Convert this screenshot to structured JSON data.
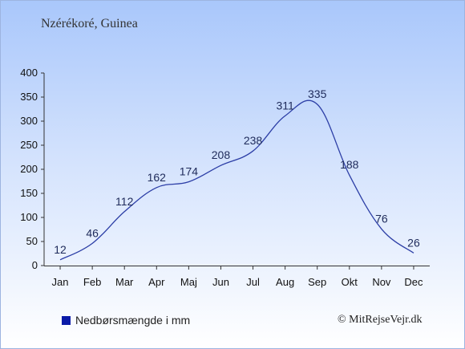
{
  "header": {
    "title": "Nzérékoré, Guinea"
  },
  "legend": {
    "label": "Nedbørsmængde i mm",
    "color": "#0a1aa8"
  },
  "credit": "© MitRejseVejr.dk",
  "colors": {
    "line": "#2c3ea6",
    "axis": "#333333",
    "label": "#1e2a5a"
  },
  "chart_data": {
    "type": "line",
    "title": "Nzérékoré, Guinea",
    "categories": [
      "Jan",
      "Feb",
      "Mar",
      "Apr",
      "Maj",
      "Jun",
      "Jul",
      "Aug",
      "Sep",
      "Okt",
      "Nov",
      "Dec"
    ],
    "series": [
      {
        "name": "Nedbørsmængde i mm",
        "values": [
          12,
          46,
          112,
          162,
          174,
          208,
          238,
          311,
          335,
          188,
          76,
          26
        ]
      }
    ],
    "data_labels": [
      "12",
      "46",
      "112",
      "162",
      "174",
      "208",
      "238",
      "311",
      "335",
      "188",
      "76",
      "26"
    ],
    "yticks": [
      0,
      50,
      100,
      150,
      200,
      250,
      300,
      350,
      400
    ],
    "ylim": [
      0,
      400
    ],
    "grid": false,
    "legend_position": "bottom-left"
  }
}
